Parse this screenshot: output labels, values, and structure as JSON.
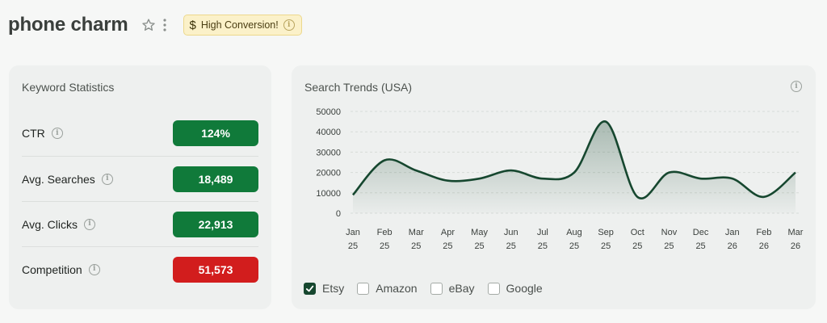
{
  "header": {
    "title": "phone charm",
    "badge": {
      "icon": "dollar-icon",
      "label": "High Conversion!"
    }
  },
  "stats": {
    "title": "Keyword Statistics",
    "rows": [
      {
        "label": "CTR",
        "value": "124%",
        "color": "#107a3a"
      },
      {
        "label": "Avg. Searches",
        "value": "18,489",
        "color": "#107a3a"
      },
      {
        "label": "Avg. Clicks",
        "value": "22,913",
        "color": "#107a3a"
      },
      {
        "label": "Competition",
        "value": "51,573",
        "color": "#d21d1d"
      }
    ]
  },
  "trends": {
    "title": "Search Trends (USA)",
    "legend": [
      {
        "label": "Etsy",
        "checked": true
      },
      {
        "label": "Amazon",
        "checked": false
      },
      {
        "label": "eBay",
        "checked": false
      },
      {
        "label": "Google",
        "checked": false
      }
    ]
  },
  "chart_data": {
    "type": "area",
    "categories": [
      "Jan 25",
      "Feb 25",
      "Mar 25",
      "Apr 25",
      "May 25",
      "Jun 25",
      "Jul 25",
      "Aug 25",
      "Sep 25",
      "Oct 25",
      "Nov 25",
      "Dec 25",
      "Jan 26",
      "Feb 26",
      "Mar 26"
    ],
    "y_ticks": [
      0,
      10000,
      20000,
      30000,
      40000,
      50000
    ],
    "ylim": [
      0,
      50000
    ],
    "series": [
      {
        "values": [
          9000,
          26000,
          21000,
          16000,
          17000,
          21000,
          17000,
          20000,
          45000,
          8000,
          20000,
          17000,
          17000,
          8000,
          20000
        ],
        "color": "#16472f"
      }
    ],
    "grid": true
  }
}
